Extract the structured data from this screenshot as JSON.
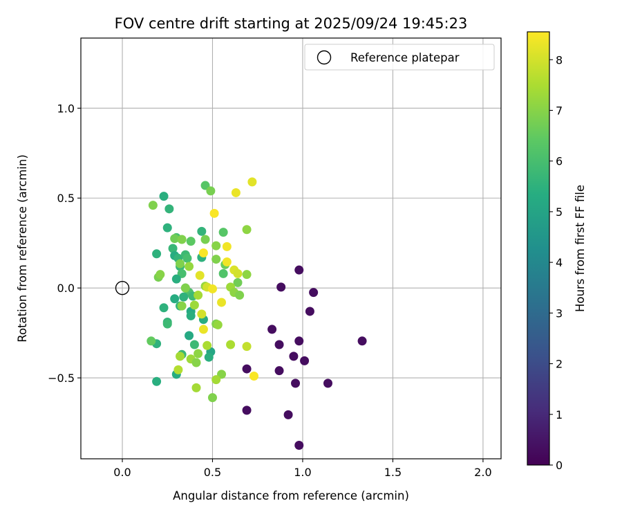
{
  "chart_data": {
    "type": "scatter",
    "title": "FOV centre drift starting at 2025/09/24 19:45:23",
    "xlabel": "Angular distance from reference (arcmin)",
    "ylabel": "Rotation from reference (arcmin)",
    "xlim": [
      -0.23,
      2.1
    ],
    "ylim": [
      -0.95,
      1.39
    ],
    "xticks": [
      0.0,
      0.5,
      1.0,
      1.5,
      2.0
    ],
    "xtick_labels": [
      "0.0",
      "0.5",
      "1.0",
      "1.5",
      "2.0"
    ],
    "yticks": [
      -0.5,
      0.0,
      0.5,
      1.0
    ],
    "ytick_labels": [
      "−0.5",
      "0.0",
      "0.5",
      "1.0"
    ],
    "grid": true,
    "legend": {
      "position": "top-right",
      "label": "Reference platepar"
    },
    "reference_point": {
      "x": 0.0,
      "y": 0.0
    },
    "colorbar": {
      "label": "Hours from first FF file",
      "range": [
        0,
        8.55
      ],
      "ticks": [
        0,
        1,
        2,
        3,
        4,
        5,
        6,
        7,
        8
      ],
      "tick_labels": [
        "0",
        "1",
        "2",
        "3",
        "4",
        "5",
        "6",
        "7",
        "8"
      ],
      "colormap": "viridis"
    },
    "points": [
      {
        "x": 0.98,
        "y": 0.1,
        "c": 0.3
      },
      {
        "x": 0.88,
        "y": 0.005,
        "c": 0.3
      },
      {
        "x": 1.06,
        "y": -0.025,
        "c": 0.3
      },
      {
        "x": 1.04,
        "y": -0.13,
        "c": 0.3
      },
      {
        "x": 0.83,
        "y": -0.23,
        "c": 0.3
      },
      {
        "x": 0.98,
        "y": -0.295,
        "c": 0.3
      },
      {
        "x": 0.87,
        "y": -0.315,
        "c": 0.3
      },
      {
        "x": 1.33,
        "y": -0.295,
        "c": 0.3
      },
      {
        "x": 0.95,
        "y": -0.38,
        "c": 0.3
      },
      {
        "x": 1.01,
        "y": -0.405,
        "c": 0.3
      },
      {
        "x": 0.69,
        "y": -0.45,
        "c": 0.3
      },
      {
        "x": 0.87,
        "y": -0.46,
        "c": 0.3
      },
      {
        "x": 0.96,
        "y": -0.53,
        "c": 0.3
      },
      {
        "x": 1.14,
        "y": -0.53,
        "c": 0.3
      },
      {
        "x": 0.69,
        "y": -0.68,
        "c": 0.3
      },
      {
        "x": 0.92,
        "y": -0.705,
        "c": 0.3
      },
      {
        "x": 0.98,
        "y": -0.875,
        "c": 0.3
      },
      {
        "x": 0.23,
        "y": 0.51,
        "c": 5.4
      },
      {
        "x": 0.26,
        "y": 0.44,
        "c": 5.6
      },
      {
        "x": 0.25,
        "y": 0.335,
        "c": 5.5
      },
      {
        "x": 0.44,
        "y": 0.315,
        "c": 5.6
      },
      {
        "x": 0.3,
        "y": 0.28,
        "c": 6.0
      },
      {
        "x": 0.28,
        "y": 0.22,
        "c": 5.7
      },
      {
        "x": 0.19,
        "y": 0.19,
        "c": 5.5
      },
      {
        "x": 0.29,
        "y": 0.18,
        "c": 5.3
      },
      {
        "x": 0.31,
        "y": 0.165,
        "c": 5.6
      },
      {
        "x": 0.35,
        "y": 0.185,
        "c": 5.8
      },
      {
        "x": 0.36,
        "y": 0.165,
        "c": 6.0
      },
      {
        "x": 0.44,
        "y": 0.17,
        "c": 5.5
      },
      {
        "x": 0.32,
        "y": 0.12,
        "c": 5.7
      },
      {
        "x": 0.33,
        "y": 0.08,
        "c": 6.0
      },
      {
        "x": 0.3,
        "y": 0.05,
        "c": 5.4
      },
      {
        "x": 0.35,
        "y": 0.0,
        "c": 5.9
      },
      {
        "x": 0.37,
        "y": -0.025,
        "c": 6.1
      },
      {
        "x": 0.29,
        "y": -0.06,
        "c": 5.3
      },
      {
        "x": 0.34,
        "y": -0.05,
        "c": 5.5
      },
      {
        "x": 0.39,
        "y": -0.045,
        "c": 5.8
      },
      {
        "x": 0.32,
        "y": -0.1,
        "c": 5.6
      },
      {
        "x": 0.23,
        "y": -0.11,
        "c": 5.5
      },
      {
        "x": 0.38,
        "y": -0.13,
        "c": 5.2
      },
      {
        "x": 0.38,
        "y": -0.155,
        "c": 5.4
      },
      {
        "x": 0.45,
        "y": -0.175,
        "c": 5.3
      },
      {
        "x": 0.25,
        "y": -0.19,
        "c": 5.6
      },
      {
        "x": 0.25,
        "y": -0.2,
        "c": 5.8
      },
      {
        "x": 0.37,
        "y": -0.265,
        "c": 5.2
      },
      {
        "x": 0.19,
        "y": -0.31,
        "c": 5.5
      },
      {
        "x": 0.4,
        "y": -0.315,
        "c": 5.8
      },
      {
        "x": 0.33,
        "y": -0.37,
        "c": 5.7
      },
      {
        "x": 0.49,
        "y": -0.355,
        "c": 5.1
      },
      {
        "x": 0.48,
        "y": -0.385,
        "c": 5.4
      },
      {
        "x": 0.3,
        "y": -0.48,
        "c": 5.3
      },
      {
        "x": 0.19,
        "y": -0.52,
        "c": 5.4
      },
      {
        "x": 0.46,
        "y": 0.57,
        "c": 6.3
      },
      {
        "x": 0.49,
        "y": 0.54,
        "c": 6.8
      },
      {
        "x": 0.17,
        "y": 0.46,
        "c": 6.9
      },
      {
        "x": 0.56,
        "y": 0.31,
        "c": 6.3
      },
      {
        "x": 0.69,
        "y": 0.325,
        "c": 7.1
      },
      {
        "x": 0.29,
        "y": 0.275,
        "c": 6.7
      },
      {
        "x": 0.33,
        "y": 0.27,
        "c": 6.9
      },
      {
        "x": 0.38,
        "y": 0.26,
        "c": 6.4
      },
      {
        "x": 0.46,
        "y": 0.27,
        "c": 6.8
      },
      {
        "x": 0.52,
        "y": 0.235,
        "c": 7.0
      },
      {
        "x": 0.52,
        "y": 0.16,
        "c": 6.9
      },
      {
        "x": 0.57,
        "y": 0.13,
        "c": 6.6
      },
      {
        "x": 0.37,
        "y": 0.12,
        "c": 7.2
      },
      {
        "x": 0.32,
        "y": 0.135,
        "c": 6.9
      },
      {
        "x": 0.56,
        "y": 0.08,
        "c": 6.2
      },
      {
        "x": 0.69,
        "y": 0.075,
        "c": 7.1
      },
      {
        "x": 0.2,
        "y": 0.06,
        "c": 6.8
      },
      {
        "x": 0.21,
        "y": 0.075,
        "c": 7.0
      },
      {
        "x": 0.64,
        "y": 0.03,
        "c": 6.7
      },
      {
        "x": 0.46,
        "y": 0.01,
        "c": 7.2
      },
      {
        "x": 0.35,
        "y": 0.0,
        "c": 6.9
      },
      {
        "x": 0.6,
        "y": 0.005,
        "c": 7.3
      },
      {
        "x": 0.62,
        "y": -0.025,
        "c": 7.1
      },
      {
        "x": 0.42,
        "y": -0.04,
        "c": 7.4
      },
      {
        "x": 0.65,
        "y": -0.04,
        "c": 6.9
      },
      {
        "x": 0.33,
        "y": -0.1,
        "c": 7.0
      },
      {
        "x": 0.4,
        "y": -0.095,
        "c": 7.3
      },
      {
        "x": 0.52,
        "y": -0.2,
        "c": 6.9
      },
      {
        "x": 0.53,
        "y": -0.205,
        "c": 7.2
      },
      {
        "x": 0.16,
        "y": -0.295,
        "c": 6.5
      },
      {
        "x": 0.47,
        "y": -0.32,
        "c": 7.5
      },
      {
        "x": 0.6,
        "y": -0.315,
        "c": 7.5
      },
      {
        "x": 0.42,
        "y": -0.365,
        "c": 7.1
      },
      {
        "x": 0.32,
        "y": -0.38,
        "c": 7.4
      },
      {
        "x": 0.38,
        "y": -0.395,
        "c": 7.3
      },
      {
        "x": 0.41,
        "y": -0.415,
        "c": 7.0
      },
      {
        "x": 0.69,
        "y": -0.325,
        "c": 7.8
      },
      {
        "x": 0.31,
        "y": -0.455,
        "c": 7.6
      },
      {
        "x": 0.55,
        "y": -0.48,
        "c": 7.0
      },
      {
        "x": 0.52,
        "y": -0.51,
        "c": 7.4
      },
      {
        "x": 0.41,
        "y": -0.555,
        "c": 7.4
      },
      {
        "x": 0.5,
        "y": -0.61,
        "c": 6.9
      },
      {
        "x": 0.72,
        "y": 0.59,
        "c": 8.2
      },
      {
        "x": 0.63,
        "y": 0.53,
        "c": 8.3
      },
      {
        "x": 0.51,
        "y": 0.415,
        "c": 8.5
      },
      {
        "x": 0.58,
        "y": 0.23,
        "c": 8.4
      },
      {
        "x": 0.45,
        "y": 0.195,
        "c": 8.5
      },
      {
        "x": 0.58,
        "y": 0.145,
        "c": 8.4
      },
      {
        "x": 0.62,
        "y": 0.1,
        "c": 8.1
      },
      {
        "x": 0.64,
        "y": 0.08,
        "c": 8.0
      },
      {
        "x": 0.43,
        "y": 0.07,
        "c": 8.2
      },
      {
        "x": 0.47,
        "y": 0.005,
        "c": 8.0
      },
      {
        "x": 0.5,
        "y": -0.005,
        "c": 8.4
      },
      {
        "x": 0.55,
        "y": -0.08,
        "c": 8.3
      },
      {
        "x": 0.44,
        "y": -0.145,
        "c": 8.0
      },
      {
        "x": 0.45,
        "y": -0.23,
        "c": 8.3
      },
      {
        "x": 0.73,
        "y": -0.49,
        "c": 8.5
      }
    ]
  },
  "colors": {
    "axis": "#000000",
    "grid": "#b0b0b0",
    "legend_border": "#cccccc"
  }
}
